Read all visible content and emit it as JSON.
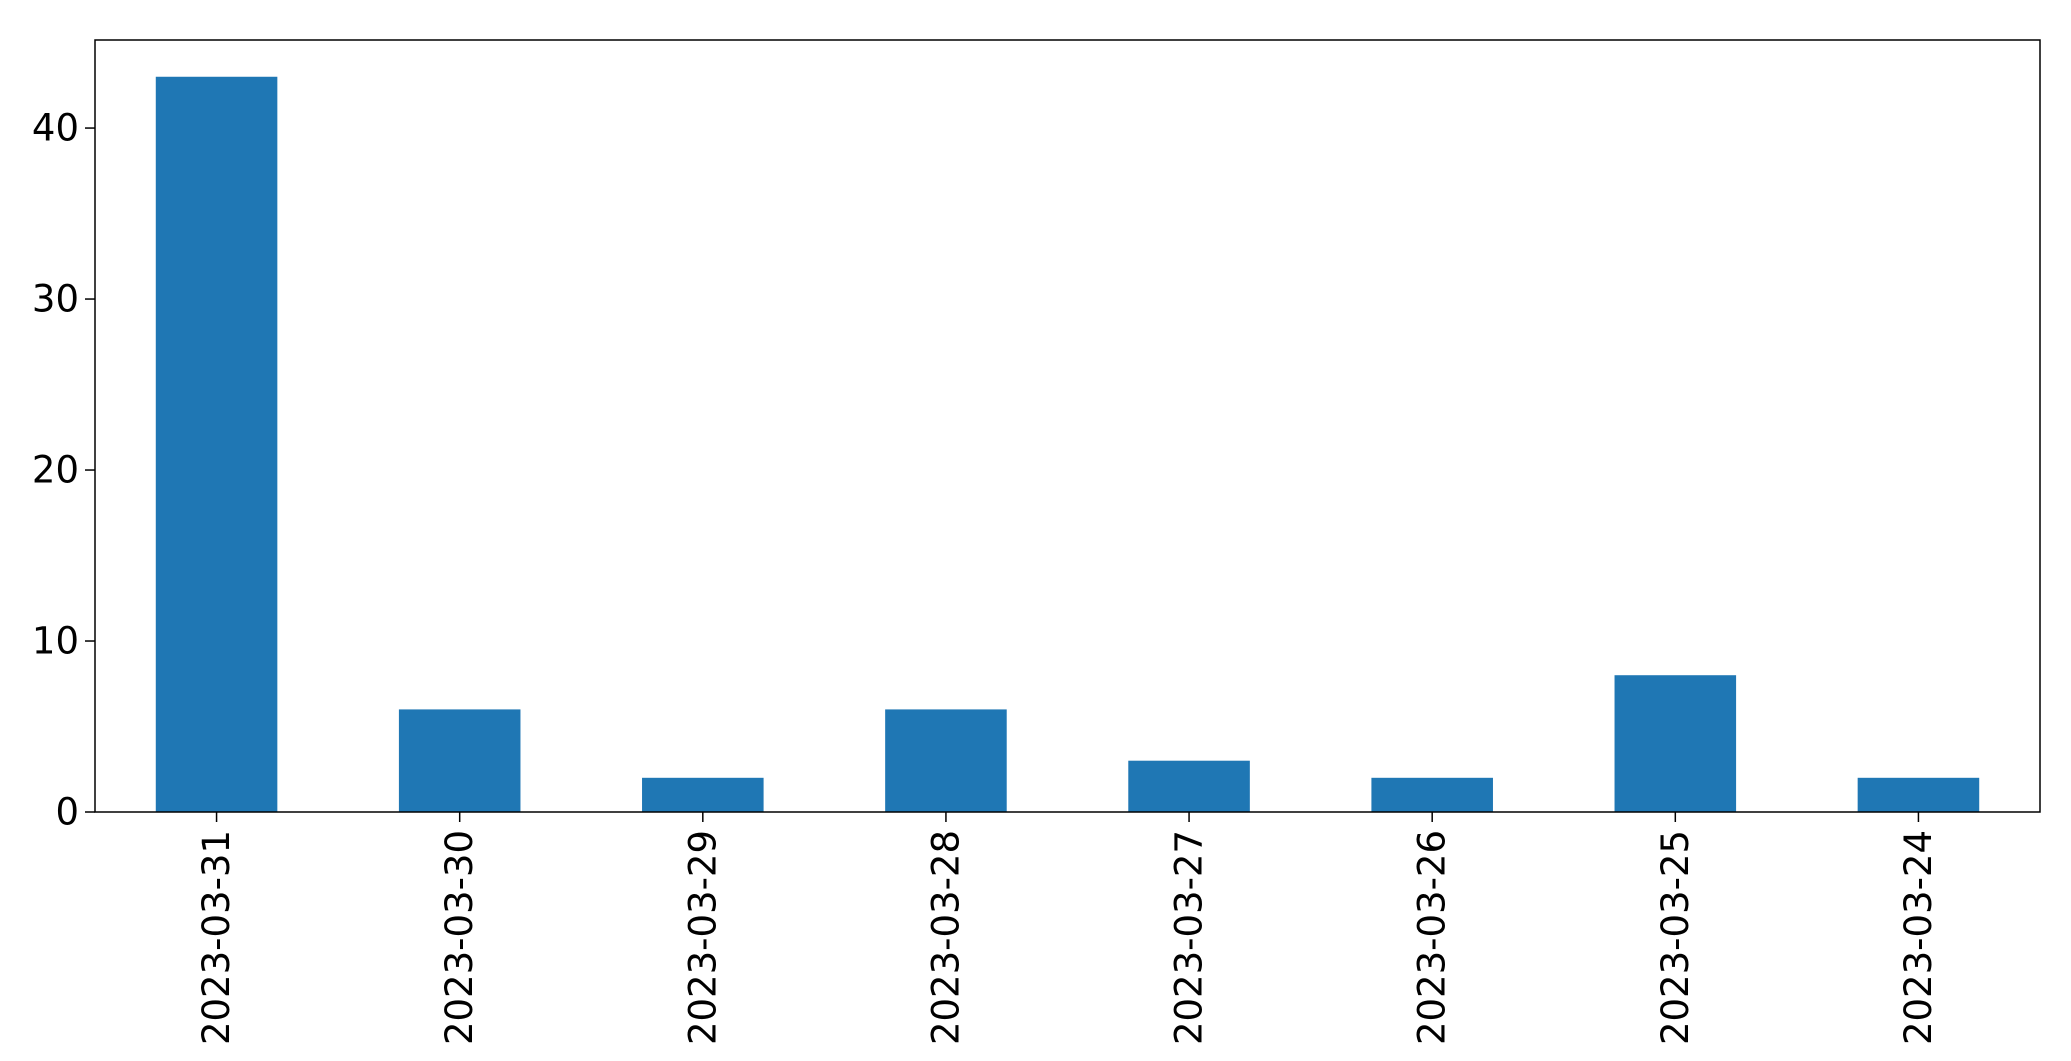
{
  "chart_data": {
    "type": "bar",
    "title": "",
    "xlabel": "",
    "ylabel": "",
    "categories": [
      "2023-03-31",
      "2023-03-30",
      "2023-03-29",
      "2023-03-28",
      "2023-03-27",
      "2023-03-26",
      "2023-03-25",
      "2023-03-24"
    ],
    "values": [
      43,
      6,
      2,
      6,
      3,
      2,
      8,
      2
    ],
    "ylim": [
      0,
      45.15
    ],
    "yticks": [
      0,
      10,
      20,
      30,
      40
    ],
    "grid": false,
    "legend": "none",
    "bar_color": "#1f77b4"
  }
}
